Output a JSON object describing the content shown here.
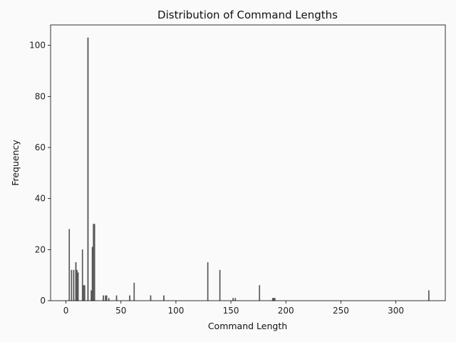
{
  "chart_data": {
    "type": "bar",
    "title": "Distribution of Command Lengths",
    "xlabel": "Command Length",
    "ylabel": "Frequency",
    "xlim": [
      -14,
      345
    ],
    "ylim": [
      0,
      108
    ],
    "xticks": [
      0,
      50,
      100,
      150,
      200,
      250,
      300
    ],
    "yticks": [
      0,
      20,
      40,
      60,
      80,
      100
    ],
    "grid": false,
    "bar_color": "#555555",
    "x": [
      3,
      5,
      7,
      9,
      10,
      11,
      15,
      16,
      17,
      20,
      23,
      24,
      25,
      26,
      34,
      36,
      37,
      39,
      46,
      58,
      62,
      77,
      89,
      129,
      140,
      152,
      154,
      176,
      188,
      189,
      190,
      330
    ],
    "values": [
      28,
      12,
      12,
      15,
      12,
      11,
      20,
      6,
      6,
      103,
      4,
      21,
      30,
      30,
      2,
      2,
      2,
      1,
      2,
      2,
      7,
      2,
      2,
      15,
      12,
      1,
      1,
      6,
      1,
      1,
      1,
      4
    ]
  }
}
